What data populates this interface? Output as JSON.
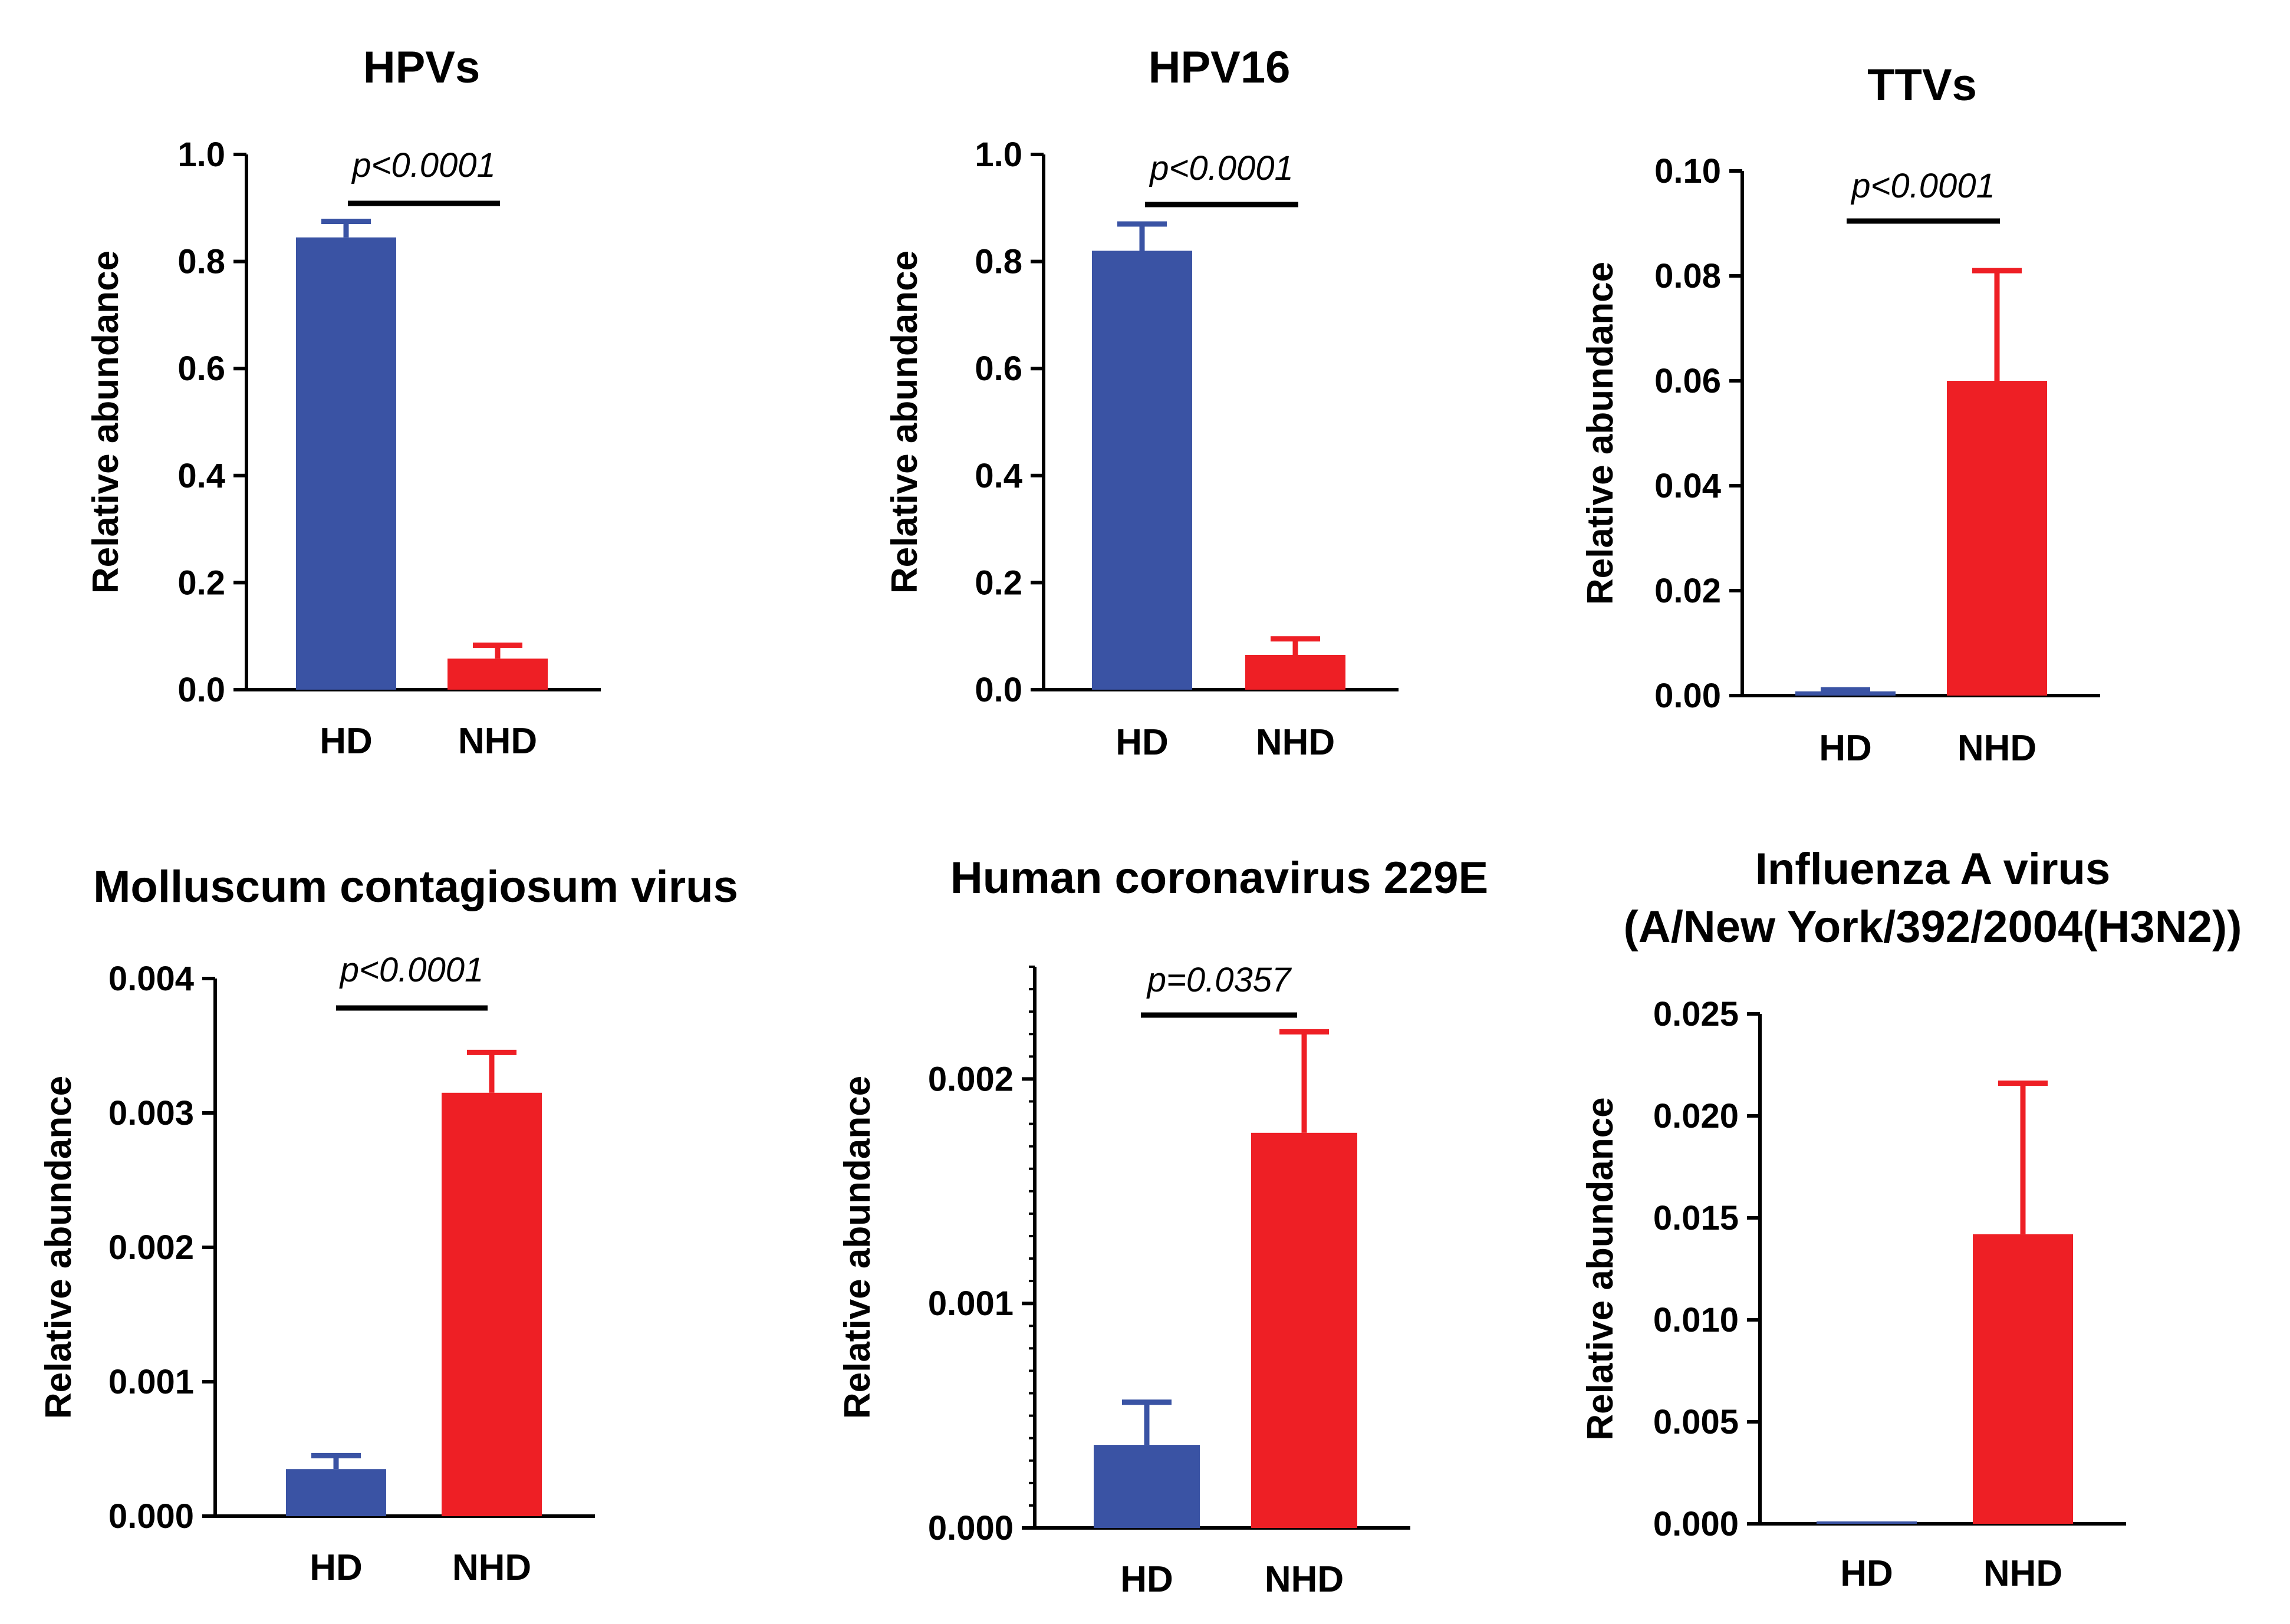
{
  "colors": {
    "hd": "#3A53A4",
    "nhd": "#EE1F25",
    "axis": "#000000"
  },
  "chart_data": [
    {
      "type": "bar",
      "title": "HPVs",
      "ylabel": "Relative abundance",
      "categories": [
        "HD",
        "NHD"
      ],
      "values": [
        0.845,
        0.058
      ],
      "errors": [
        0.03,
        0.025
      ],
      "ylim": [
        0,
        1.0
      ],
      "yticks": [
        0.0,
        0.2,
        0.4,
        0.6,
        0.8,
        1.0
      ],
      "ytick_labels": [
        "0.0",
        "0.2",
        "0.4",
        "0.6",
        "0.8",
        "1.0"
      ],
      "annotation": "p<0.0001",
      "grid": false,
      "minor_ticks": false
    },
    {
      "type": "bar",
      "title": "HPV16",
      "ylabel": "Relative abundance",
      "categories": [
        "HD",
        "NHD"
      ],
      "values": [
        0.82,
        0.065
      ],
      "errors": [
        0.05,
        0.03
      ],
      "ylim": [
        0,
        1.0
      ],
      "yticks": [
        0.0,
        0.2,
        0.4,
        0.6,
        0.8,
        1.0
      ],
      "ytick_labels": [
        "0.0",
        "0.2",
        "0.4",
        "0.6",
        "0.8",
        "1.0"
      ],
      "annotation": "p<0.0001",
      "grid": false,
      "minor_ticks": false
    },
    {
      "type": "bar",
      "title": "TTVs",
      "ylabel": "Relative abundance",
      "categories": [
        "HD",
        "NHD"
      ],
      "values": [
        0.0008,
        0.06
      ],
      "errors": [
        0.0003,
        0.021
      ],
      "ylim": [
        0,
        0.1
      ],
      "yticks": [
        0.0,
        0.02,
        0.04,
        0.06,
        0.08,
        0.1
      ],
      "ytick_labels": [
        "0.00",
        "0.02",
        "0.04",
        "0.06",
        "0.08",
        "0.10"
      ],
      "annotation": "p<0.0001",
      "grid": false,
      "minor_ticks": false
    },
    {
      "type": "bar",
      "title": "Molluscum contagiosum virus",
      "ylabel": "Relative abundance",
      "categories": [
        "HD",
        "NHD"
      ],
      "values": [
        0.00035,
        0.00315
      ],
      "errors": [
        0.0001,
        0.0003
      ],
      "ylim": [
        0,
        0.004
      ],
      "yticks": [
        0.0,
        0.001,
        0.002,
        0.003,
        0.004
      ],
      "ytick_labels": [
        "0.000",
        "0.001",
        "0.002",
        "0.003",
        "0.004"
      ],
      "annotation": "p<0.0001",
      "grid": false,
      "minor_ticks": false
    },
    {
      "type": "bar",
      "title": "Human coronavirus 229E",
      "ylabel": "Relative abundance",
      "categories": [
        "HD",
        "NHD"
      ],
      "values": [
        0.00037,
        0.00176
      ],
      "errors": [
        0.00019,
        0.00045
      ],
      "ylim": [
        0,
        0.0025
      ],
      "yticks": [
        0.0,
        0.001,
        0.002
      ],
      "ytick_labels": [
        "0.000",
        "0.001",
        "0.002"
      ],
      "annotation": "p=0.0357",
      "grid": false,
      "minor_ticks": true
    },
    {
      "type": "bar",
      "title": "Influenza A virus",
      "title_line2": "(A/New York/392/2004(H3N2))",
      "ylabel": "Relative abundance",
      "categories": [
        "HD",
        "NHD"
      ],
      "values": [
        0.0001,
        0.0142
      ],
      "errors": [
        5e-05,
        0.0074
      ],
      "ylim": [
        0,
        0.025
      ],
      "yticks": [
        0.0,
        0.005,
        0.01,
        0.015,
        0.02,
        0.025
      ],
      "ytick_labels": [
        "0.000",
        "0.005",
        "0.010",
        "0.015",
        "0.020",
        "0.025"
      ],
      "annotation": "",
      "grid": false,
      "minor_ticks": false
    }
  ]
}
